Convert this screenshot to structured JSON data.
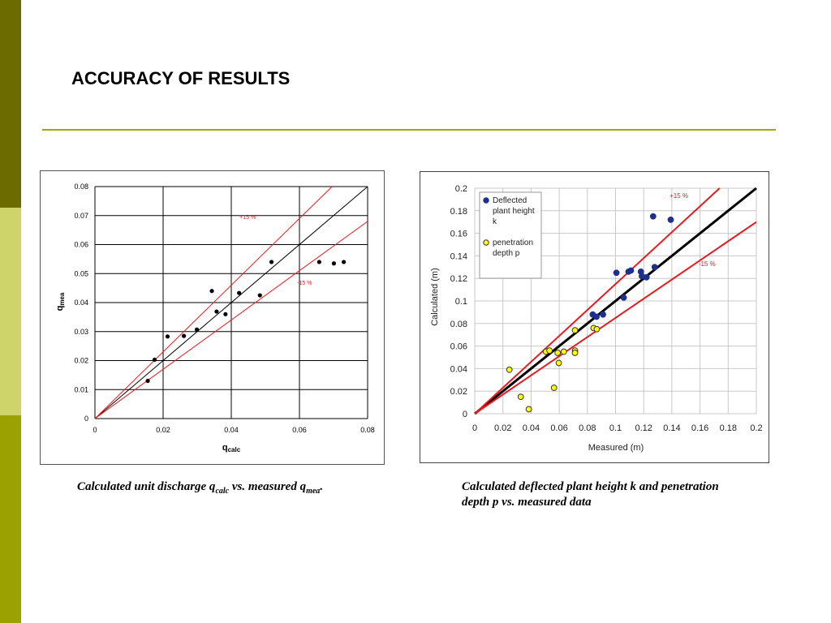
{
  "slide": {
    "title": "ACCURACY OF RESULTS",
    "colors": {
      "sidebar_dark": "#6b6b00",
      "sidebar_light": "#cfd46a",
      "sidebar_mid": "#9aa100",
      "rule": "#a3a800"
    }
  },
  "captions": {
    "left_pre": "Calculated unit discharge q",
    "left_sub1": "calc",
    "left_mid": " vs. measured q",
    "left_sub2": "mea",
    "left_post": ".",
    "right": "Calculated deflected plant height k and penetration depth p  vs. measured data"
  },
  "chart_data": [
    {
      "type": "scatter",
      "xlabel_main": "q",
      "xlabel_sub": "calc",
      "ylabel_main": "q",
      "ylabel_sub": "mea",
      "xlim": [
        0,
        0.08
      ],
      "ylim": [
        0,
        0.08
      ],
      "x_ticks": [
        "0",
        "0.02",
        "0.04",
        "0.06",
        "0.08"
      ],
      "y_ticks": [
        "0",
        "0.01",
        "0.02",
        "0.03",
        "0.04",
        "0.05",
        "0.06",
        "0.07",
        "0.08"
      ],
      "x_tick_values": [
        0,
        0.02,
        0.04,
        0.06,
        0.08
      ],
      "y_tick_values": [
        0,
        0.01,
        0.02,
        0.03,
        0.04,
        0.05,
        0.06,
        0.07,
        0.08
      ],
      "grid": true,
      "reference_lines": [
        {
          "label": "",
          "slope": 1.0,
          "color": "#000000"
        },
        {
          "label": "+15 %",
          "slope": 1.15,
          "color": "#e8191e"
        },
        {
          "label": "-15 %",
          "slope": 0.85,
          "color": "#e8191e"
        }
      ],
      "series": [
        {
          "marker_color": "#000000",
          "points": [
            [
              0.0155,
              0.013
            ],
            [
              0.0175,
              0.0203
            ],
            [
              0.0213,
              0.0283
            ],
            [
              0.0261,
              0.0285
            ],
            [
              0.0299,
              0.0307
            ],
            [
              0.0343,
              0.044
            ],
            [
              0.0357,
              0.0369
            ],
            [
              0.0383,
              0.036
            ],
            [
              0.0423,
              0.0433
            ],
            [
              0.0484,
              0.0425
            ],
            [
              0.0518,
              0.054
            ],
            [
              0.0658,
              0.054
            ],
            [
              0.0701,
              0.0535
            ],
            [
              0.073,
              0.054
            ]
          ]
        }
      ]
    },
    {
      "type": "scatter",
      "xlabel": "Measured (m)",
      "ylabel": "Calculated (m)",
      "xlim": [
        0,
        0.2
      ],
      "ylim": [
        0,
        0.2
      ],
      "x_ticks": [
        "0",
        "0.02",
        "0.04",
        "0.06",
        "0.08",
        "0.1",
        "0.12",
        "0.14",
        "0.16",
        "0.18",
        "0.2"
      ],
      "y_ticks": [
        "0",
        "0.02",
        "0.04",
        "0.06",
        "0.08",
        "0.1",
        "0.12",
        "0.14",
        "0.16",
        "0.18",
        "0.2"
      ],
      "x_tick_values": [
        0,
        0.02,
        0.04,
        0.06,
        0.08,
        0.1,
        0.12,
        0.14,
        0.16,
        0.18,
        0.2
      ],
      "y_tick_values": [
        0,
        0.02,
        0.04,
        0.06,
        0.08,
        0.1,
        0.12,
        0.14,
        0.16,
        0.18,
        0.2
      ],
      "grid": true,
      "legend": "top-left",
      "reference_lines": [
        {
          "label": "",
          "slope": 1.0,
          "color": "#000000"
        },
        {
          "label": "+15 %",
          "slope": 1.15,
          "color": "#e8191e"
        },
        {
          "label": "-15 %",
          "slope": 0.85,
          "color": "#e8191e"
        }
      ],
      "series": [
        {
          "name_lines": [
            "Deflected",
            "plant height",
            "k"
          ],
          "marker_color": "#1f2f8f",
          "points": [
            [
              0.0838,
              0.088
            ],
            [
              0.0865,
              0.086
            ],
            [
              0.0911,
              0.088
            ],
            [
              0.1006,
              0.125
            ],
            [
              0.1058,
              0.103
            ],
            [
              0.1092,
              0.126
            ],
            [
              0.1109,
              0.127
            ],
            [
              0.118,
              0.126
            ],
            [
              0.1187,
              0.122
            ],
            [
              0.122,
              0.121
            ],
            [
              0.1267,
              0.175
            ],
            [
              0.1278,
              0.13
            ],
            [
              0.1392,
              0.172
            ]
          ]
        },
        {
          "name_lines": [
            "penetration",
            "depth p"
          ],
          "marker_color": "#ffff00",
          "points": [
            [
              0.0246,
              0.039
            ],
            [
              0.0327,
              0.015
            ],
            [
              0.0384,
              0.004
            ],
            [
              0.0505,
              0.055
            ],
            [
              0.0531,
              0.056
            ],
            [
              0.0563,
              0.023
            ],
            [
              0.0589,
              0.054
            ],
            [
              0.0597,
              0.045
            ],
            [
              0.0633,
              0.055
            ],
            [
              0.0712,
              0.074
            ],
            [
              0.0712,
              0.056
            ],
            [
              0.0712,
              0.054
            ],
            [
              0.0844,
              0.076
            ],
            [
              0.0867,
              0.075
            ]
          ]
        }
      ]
    }
  ]
}
